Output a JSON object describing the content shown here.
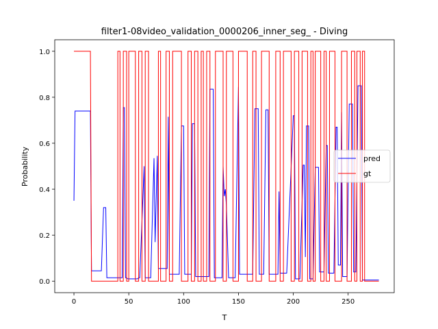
{
  "chart_data": {
    "type": "line",
    "title": "filter1-08video_validation_0000206_inner_seg_ - Diving",
    "xlabel": "T",
    "ylabel": "Probability",
    "xlim": [
      -17.5,
      292
    ],
    "ylim": [
      -0.05,
      1.05
    ],
    "xticks": [
      0,
      50,
      100,
      150,
      200,
      250
    ],
    "yticks": [
      0.0,
      0.2,
      0.4,
      0.6,
      0.8,
      1.0
    ],
    "legend_position": "center-right",
    "series": [
      {
        "name": "pred",
        "color": "#0000ff",
        "points": [
          [
            0,
            0.35
          ],
          [
            1,
            0.74
          ],
          [
            15,
            0.74
          ],
          [
            16,
            0.045
          ],
          [
            25,
            0.045
          ],
          [
            27,
            0.32
          ],
          [
            29,
            0.32
          ],
          [
            30,
            0.015
          ],
          [
            44,
            0.015
          ],
          [
            45,
            0.755
          ],
          [
            46,
            0.755
          ],
          [
            47,
            0.015
          ],
          [
            48,
            0.015
          ],
          [
            49,
            0.01
          ],
          [
            58,
            0.01
          ],
          [
            59,
            0.015
          ],
          [
            60,
            0.015
          ],
          [
            64,
            0.5
          ],
          [
            65,
            0.015
          ],
          [
            70,
            0.015
          ],
          [
            73,
            0.535
          ],
          [
            74,
            0.17
          ],
          [
            76,
            0.545
          ],
          [
            77,
            0.055
          ],
          [
            82,
            0.055
          ],
          [
            85,
            0.055
          ],
          [
            86,
            0.715
          ],
          [
            87,
            0.03
          ],
          [
            96,
            0.03
          ],
          [
            98,
            0.675
          ],
          [
            100,
            0.675
          ],
          [
            101,
            0.03
          ],
          [
            107,
            0.03
          ],
          [
            108,
            0.685
          ],
          [
            110,
            0.685
          ],
          [
            111,
            0.02
          ],
          [
            123,
            0.02
          ],
          [
            124,
            0.835
          ],
          [
            127,
            0.835
          ],
          [
            128,
            0.015
          ],
          [
            130,
            0.015
          ],
          [
            135,
            0.015
          ],
          [
            136,
            0.5
          ],
          [
            137,
            0.37
          ],
          [
            138,
            0.4
          ],
          [
            139,
            0.33
          ],
          [
            141,
            0.015
          ],
          [
            147,
            0.015
          ],
          [
            150,
            0.845
          ],
          [
            151,
            0.03
          ],
          [
            162,
            0.03
          ],
          [
            163,
            0.03
          ],
          [
            165,
            0.75
          ],
          [
            168,
            0.75
          ],
          [
            169,
            0.03
          ],
          [
            172,
            0.03
          ],
          [
            173,
            0.03
          ],
          [
            175,
            0.745
          ],
          [
            177,
            0.745
          ],
          [
            178,
            0.03
          ],
          [
            183,
            0.03
          ],
          [
            186,
            0.03
          ],
          [
            187,
            0.39
          ],
          [
            188,
            0.035
          ],
          [
            193,
            0.035
          ],
          [
            194,
            0.035
          ],
          [
            200,
            0.72
          ],
          [
            201,
            0.72
          ],
          [
            202,
            0.01
          ],
          [
            206,
            0.01
          ],
          [
            209,
            0.505
          ],
          [
            210,
            0.505
          ],
          [
            211,
            0.105
          ],
          [
            212,
            0.675
          ],
          [
            214,
            0.675
          ],
          [
            215,
            0.01
          ],
          [
            218,
            0.01
          ],
          [
            220,
            0.495
          ],
          [
            223,
            0.495
          ],
          [
            224,
            0.04
          ],
          [
            228,
            0.04
          ],
          [
            230,
            0.59
          ],
          [
            231,
            0.59
          ],
          [
            232,
            0.035
          ],
          [
            237,
            0.035
          ],
          [
            239,
            0.67
          ],
          [
            240,
            0.67
          ],
          [
            241,
            0.07
          ],
          [
            243,
            0.07
          ],
          [
            244,
            0.735
          ],
          [
            245,
            0.02
          ],
          [
            249,
            0.02
          ],
          [
            251,
            0.77
          ],
          [
            254,
            0.77
          ],
          [
            255,
            0.04
          ],
          [
            257,
            0.04
          ],
          [
            259,
            0.85
          ],
          [
            262,
            0.85
          ],
          [
            263,
            0.005
          ],
          [
            278,
            0.005
          ]
        ]
      },
      {
        "name": "gt",
        "color": "#ff0000",
        "points": [
          [
            0,
            1
          ],
          [
            15,
            1
          ],
          [
            16,
            0
          ],
          [
            40,
            0
          ],
          [
            40,
            1
          ],
          [
            42,
            1
          ],
          [
            42,
            0
          ],
          [
            45,
            0
          ],
          [
            45,
            1
          ],
          [
            48,
            1
          ],
          [
            48,
            0
          ],
          [
            50,
            0
          ],
          [
            50,
            1
          ],
          [
            56,
            1
          ],
          [
            56,
            0
          ],
          [
            59,
            0
          ],
          [
            59,
            1
          ],
          [
            62,
            1
          ],
          [
            62,
            0
          ],
          [
            65,
            0
          ],
          [
            65,
            1
          ],
          [
            68,
            1
          ],
          [
            68,
            0
          ],
          [
            77,
            0
          ],
          [
            77,
            1
          ],
          [
            79,
            1
          ],
          [
            79,
            0
          ],
          [
            84,
            0
          ],
          [
            84,
            1
          ],
          [
            87,
            1
          ],
          [
            87,
            0
          ],
          [
            90,
            0
          ],
          [
            90,
            1
          ],
          [
            98,
            1
          ],
          [
            98,
            0
          ],
          [
            104,
            0
          ],
          [
            104,
            1
          ],
          [
            107,
            1
          ],
          [
            107,
            0
          ],
          [
            110,
            0
          ],
          [
            110,
            1
          ],
          [
            113,
            1
          ],
          [
            113,
            0
          ],
          [
            116,
            0
          ],
          [
            116,
            1
          ],
          [
            118,
            1
          ],
          [
            118,
            0
          ],
          [
            121,
            0
          ],
          [
            121,
            1
          ],
          [
            124,
            1
          ],
          [
            124,
            0
          ],
          [
            129,
            0
          ],
          [
            129,
            1
          ],
          [
            136,
            1
          ],
          [
            136,
            0
          ],
          [
            139,
            0
          ],
          [
            139,
            1
          ],
          [
            145,
            1
          ],
          [
            145,
            0
          ],
          [
            150,
            0
          ],
          [
            150,
            1
          ],
          [
            158,
            1
          ],
          [
            158,
            0
          ],
          [
            163,
            0
          ],
          [
            163,
            1
          ],
          [
            166,
            1
          ],
          [
            166,
            0
          ],
          [
            171,
            0
          ],
          [
            171,
            1
          ],
          [
            178,
            1
          ],
          [
            178,
            0
          ],
          [
            184,
            0
          ],
          [
            184,
            1
          ],
          [
            188,
            1
          ],
          [
            188,
            0
          ],
          [
            191,
            0
          ],
          [
            191,
            1
          ],
          [
            198,
            1
          ],
          [
            198,
            0
          ],
          [
            201,
            0
          ],
          [
            201,
            1
          ],
          [
            205,
            1
          ],
          [
            205,
            0
          ],
          [
            208,
            0
          ],
          [
            208,
            1
          ],
          [
            213,
            1
          ],
          [
            213,
            0
          ],
          [
            216,
            0
          ],
          [
            216,
            1
          ],
          [
            218,
            1
          ],
          [
            218,
            0
          ],
          [
            220,
            0
          ],
          [
            220,
            1
          ],
          [
            225,
            1
          ],
          [
            225,
            0
          ],
          [
            228,
            0
          ],
          [
            228,
            1
          ],
          [
            230,
            1
          ],
          [
            230,
            0
          ],
          [
            233,
            0
          ],
          [
            233,
            1
          ],
          [
            238,
            1
          ],
          [
            238,
            0
          ],
          [
            244,
            0
          ],
          [
            244,
            1
          ],
          [
            249,
            1
          ],
          [
            249,
            0
          ],
          [
            253,
            0
          ],
          [
            253,
            1
          ],
          [
            256,
            1
          ],
          [
            256,
            0
          ],
          [
            258,
            0
          ],
          [
            258,
            1
          ],
          [
            261,
            1
          ],
          [
            261,
            0
          ],
          [
            263,
            0
          ],
          [
            263,
            1
          ],
          [
            265,
            1
          ],
          [
            265,
            0
          ],
          [
            278,
            0
          ]
        ]
      }
    ]
  }
}
